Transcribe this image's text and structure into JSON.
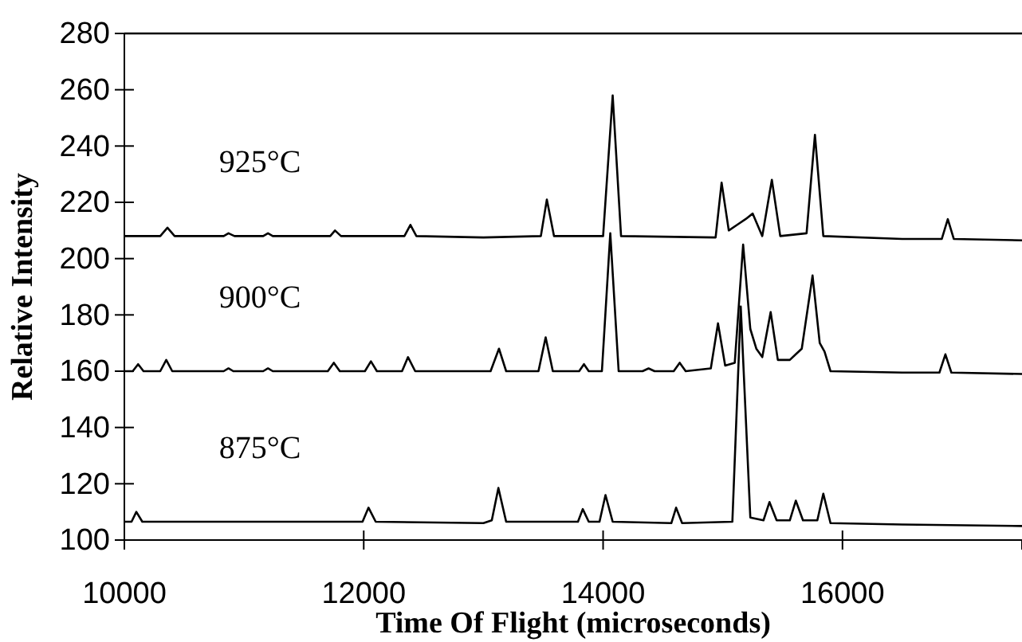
{
  "chart_data": {
    "type": "line",
    "xlabel": "Time Of Flight (microseconds)",
    "ylabel": "Relative Intensity",
    "xlim": [
      10000,
      17500
    ],
    "ylim": [
      100,
      280
    ],
    "xticks": [
      10000,
      12000,
      14000,
      16000
    ],
    "yticks": [
      100,
      120,
      140,
      160,
      180,
      200,
      220,
      240,
      260,
      280
    ],
    "grid": false,
    "marker": "none",
    "line_style": "solid",
    "series": [
      {
        "name": "925°C",
        "color": "#000000",
        "x": [
          10000,
          10300,
          10360,
          10420,
          10830,
          10870,
          10920,
          11160,
          11200,
          11240,
          11720,
          11760,
          11810,
          12340,
          12390,
          12440,
          13000,
          13480,
          13530,
          13590,
          14000,
          14080,
          14150,
          14940,
          14990,
          15050,
          15120,
          15190,
          15250,
          15330,
          15410,
          15480,
          15700,
          15770,
          15840,
          16500,
          16830,
          16880,
          16930,
          17500
        ],
        "values": [
          208,
          208,
          211,
          208,
          208,
          209,
          208,
          208,
          209,
          208,
          208,
          210,
          208,
          208,
          212,
          208,
          207.5,
          208,
          221,
          208,
          208,
          258,
          208,
          207.5,
          227,
          210,
          212,
          214,
          216,
          208,
          228,
          208,
          209,
          244,
          208,
          207,
          207,
          214,
          207,
          206.5
        ]
      },
      {
        "name": "900°C",
        "color": "#000000",
        "x": [
          10000,
          10070,
          10115,
          10160,
          10300,
          10350,
          10400,
          10830,
          10870,
          10910,
          11160,
          11200,
          11240,
          11700,
          11750,
          11800,
          12010,
          12060,
          12110,
          12320,
          12370,
          12430,
          13060,
          13130,
          13190,
          13460,
          13520,
          13580,
          13800,
          13840,
          13880,
          13990,
          14060,
          14130,
          14330,
          14380,
          14430,
          14590,
          14640,
          14690,
          14900,
          14960,
          15020,
          15100,
          15170,
          15230,
          15280,
          15330,
          15400,
          15460,
          15560,
          15610,
          15660,
          15750,
          15810,
          15850,
          15900,
          16500,
          16810,
          16860,
          16910,
          17500
        ],
        "values": [
          160,
          160,
          162.5,
          160,
          160,
          164,
          160,
          160,
          161,
          160,
          160,
          161,
          160,
          160,
          163,
          160,
          160,
          163.5,
          160,
          160,
          165,
          160,
          160,
          168,
          160,
          160,
          172,
          160,
          160,
          162.5,
          160,
          160,
          209,
          160,
          160,
          161,
          160,
          160,
          163,
          160,
          161,
          177,
          162,
          163,
          205,
          175,
          168,
          165,
          181,
          164,
          164,
          166,
          168,
          194,
          170,
          167,
          160,
          159.5,
          159.5,
          166,
          159.5,
          159
        ]
      },
      {
        "name": "875°C",
        "color": "#000000",
        "x": [
          10000,
          10060,
          10100,
          10150,
          11990,
          12040,
          12100,
          13000,
          13070,
          13125,
          13190,
          13790,
          13830,
          13880,
          13970,
          14020,
          14080,
          14570,
          14610,
          14660,
          15080,
          15150,
          15230,
          15340,
          15390,
          15450,
          15560,
          15610,
          15670,
          15790,
          15840,
          15900,
          16500,
          17500
        ],
        "values": [
          106.5,
          106.5,
          110,
          106.5,
          106.5,
          111.5,
          106.5,
          106,
          107,
          118.5,
          106.5,
          106.5,
          111,
          106.5,
          106.5,
          116,
          106.5,
          106,
          111.5,
          106,
          106.5,
          183,
          108,
          107,
          113.5,
          107,
          107,
          114,
          107,
          107,
          116.5,
          106,
          105.5,
          105
        ]
      }
    ]
  }
}
